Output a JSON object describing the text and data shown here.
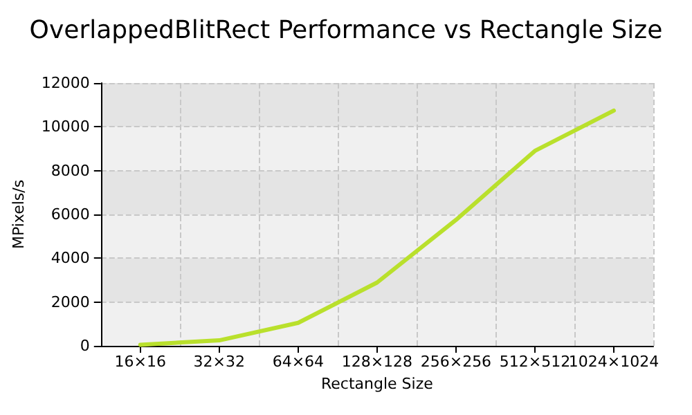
{
  "chart_data": {
    "type": "line",
    "title": "OverlappedBlitRect Performance vs Rectangle Size",
    "xlabel": "Rectangle Size",
    "ylabel": "MPixels/s",
    "categories": [
      "16×16",
      "32×32",
      "64×64",
      "128×128",
      "256×256",
      "512×512",
      "1024×1024"
    ],
    "series": [
      {
        "color": "#b9e02c",
        "values": [
          50,
          250,
          1050,
          2890,
          5750,
          8900,
          10740
        ]
      }
    ],
    "ylim": [
      0,
      12000
    ],
    "yticks": [
      0,
      2000,
      4000,
      6000,
      8000,
      10000,
      12000
    ],
    "grid": true,
    "marker": "none",
    "line_style": "solid"
  }
}
